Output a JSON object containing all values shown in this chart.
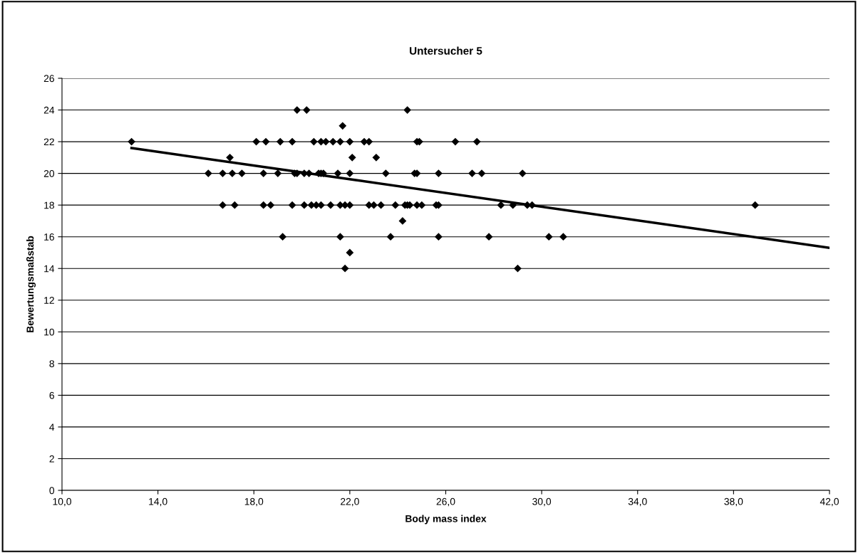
{
  "chart_data": {
    "type": "scatter",
    "title": "Untersucher 5",
    "xlabel": "Body mass index",
    "ylabel": "Bewertungsmaßstab",
    "xlim": [
      10,
      42
    ],
    "xticks": [
      {
        "value": 10,
        "label": "10,0"
      },
      {
        "value": 14,
        "label": "14,0"
      },
      {
        "value": 18,
        "label": "18,0"
      },
      {
        "value": 22,
        "label": "22,0"
      },
      {
        "value": 26,
        "label": "26,0"
      },
      {
        "value": 30,
        "label": "30,0"
      },
      {
        "value": 34,
        "label": "34,0"
      },
      {
        "value": 38,
        "label": "38,0"
      },
      {
        "value": 42,
        "label": "42,0"
      }
    ],
    "ylim": [
      0,
      26
    ],
    "yticks": [
      0,
      2,
      4,
      6,
      8,
      10,
      12,
      14,
      16,
      18,
      20,
      22,
      24,
      26
    ],
    "grid": "y",
    "marker": "diamond",
    "series": [
      {
        "color": "#000000",
        "x": [
          19.8,
          20.2,
          24.4,
          21.7,
          12.9,
          18.1,
          18.5,
          19.1,
          19.6,
          20.5,
          20.8,
          21.0,
          21.3,
          21.6,
          22.0,
          22.6,
          22.8,
          24.8,
          24.9,
          26.4,
          27.3,
          17.0,
          22.1,
          23.1,
          16.1,
          16.7,
          17.1,
          17.5,
          18.4,
          19.0,
          19.7,
          19.8,
          20.1,
          20.3,
          20.7,
          20.8,
          20.9,
          21.5,
          22.0,
          23.5,
          24.7,
          24.8,
          25.7,
          27.1,
          27.5,
          29.2,
          16.7,
          17.2,
          18.4,
          18.7,
          19.6,
          20.1,
          20.4,
          20.6,
          20.8,
          21.2,
          21.6,
          21.8,
          22.0,
          22.8,
          23.0,
          23.3,
          23.9,
          24.3,
          24.4,
          24.5,
          24.8,
          25.0,
          25.6,
          25.7,
          28.3,
          28.8,
          29.4,
          29.6,
          38.9,
          24.2,
          19.2,
          21.6,
          23.7,
          25.7,
          27.8,
          30.3,
          30.9,
          22.0,
          21.8,
          29.0
        ],
        "values": [
          24,
          24,
          24,
          23,
          22,
          22,
          22,
          22,
          22,
          22,
          22,
          22,
          22,
          22,
          22,
          22,
          22,
          22,
          22,
          22,
          22,
          21,
          21,
          21,
          20,
          20,
          20,
          20,
          20,
          20,
          20,
          20,
          20,
          20,
          20,
          20,
          20,
          20,
          20,
          20,
          20,
          20,
          20,
          20,
          20,
          20,
          18,
          18,
          18,
          18,
          18,
          18,
          18,
          18,
          18,
          18,
          18,
          18,
          18,
          18,
          18,
          18,
          18,
          18,
          18,
          18,
          18,
          18,
          18,
          18,
          18,
          18,
          18,
          18,
          18,
          17,
          16,
          16,
          16,
          16,
          16,
          16,
          16,
          15,
          14,
          14
        ]
      },
      {
        "type": "line",
        "color": "#000000",
        "marker": "none",
        "x": [
          12.9,
          42.0
        ],
        "values": [
          21.6,
          15.3
        ]
      }
    ]
  }
}
